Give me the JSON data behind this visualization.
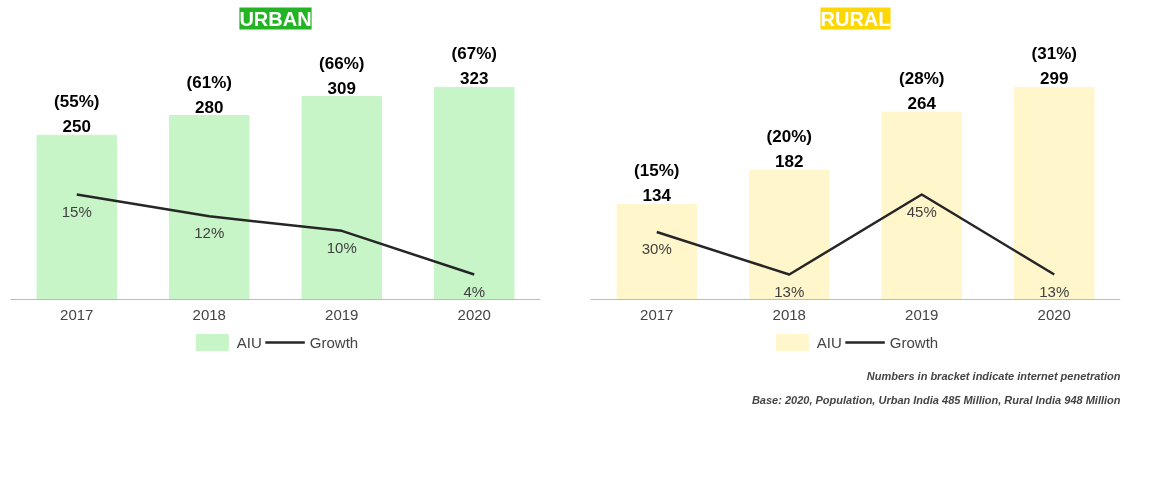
{
  "chart_data": [
    {
      "type": "bar",
      "title": "URBAN",
      "categories": [
        "2017",
        "2018",
        "2019",
        "2020"
      ],
      "tick_labels": "x",
      "grid": false,
      "legend": "bottom",
      "series": [
        {
          "name": "AIU",
          "color": "#c8f5c8",
          "values": [
            250,
            280,
            309,
            323
          ],
          "value_labels": [
            "250",
            "280",
            "309",
            "323"
          ]
        },
        {
          "name": "Growth",
          "type": "line",
          "axis": "y2",
          "color": "#262626",
          "values": [
            15,
            12,
            10,
            4
          ],
          "value_labels": [
            "15%",
            "12%",
            "10%",
            "4%"
          ]
        }
      ],
      "annotations": [
        {
          "text": "(55%)",
          "x": "2017",
          "y": 250
        },
        {
          "text": "(61%)",
          "x": "2018",
          "y": 280
        },
        {
          "text": "(66%)",
          "x": "2019",
          "y": 309
        },
        {
          "text": "(67%)",
          "x": "2020",
          "y": 323
        }
      ]
    },
    {
      "type": "bar",
      "title": "RURAL",
      "categories": [
        "2017",
        "2018",
        "2019",
        "2020"
      ],
      "tick_labels": "x",
      "grid": false,
      "legend": "bottom",
      "series": [
        {
          "name": "AIU",
          "color": "#fff6cc",
          "values": [
            134,
            182,
            264,
            299
          ],
          "value_labels": [
            "134",
            "182",
            "264",
            "299"
          ]
        },
        {
          "name": "Growth",
          "type": "line",
          "axis": "y2",
          "color": "#262626",
          "values": [
            30,
            13,
            45,
            13
          ],
          "value_labels": [
            "30%",
            "13%",
            "45%",
            "13%"
          ]
        }
      ],
      "annotations": [
        {
          "text": "(15%)",
          "x": "2017",
          "y": 134
        },
        {
          "text": "(20%)",
          "x": "2018",
          "y": 182
        },
        {
          "text": "(28%)",
          "x": "2019",
          "y": 264
        },
        {
          "text": "(31%)",
          "x": "2020",
          "y": 299
        },
        "Base: 2020, Population, Urban India 485 Million, Rural India 948 Million",
        "Numbers in bracket indicate internet penetration"
      ]
    }
  ]
}
